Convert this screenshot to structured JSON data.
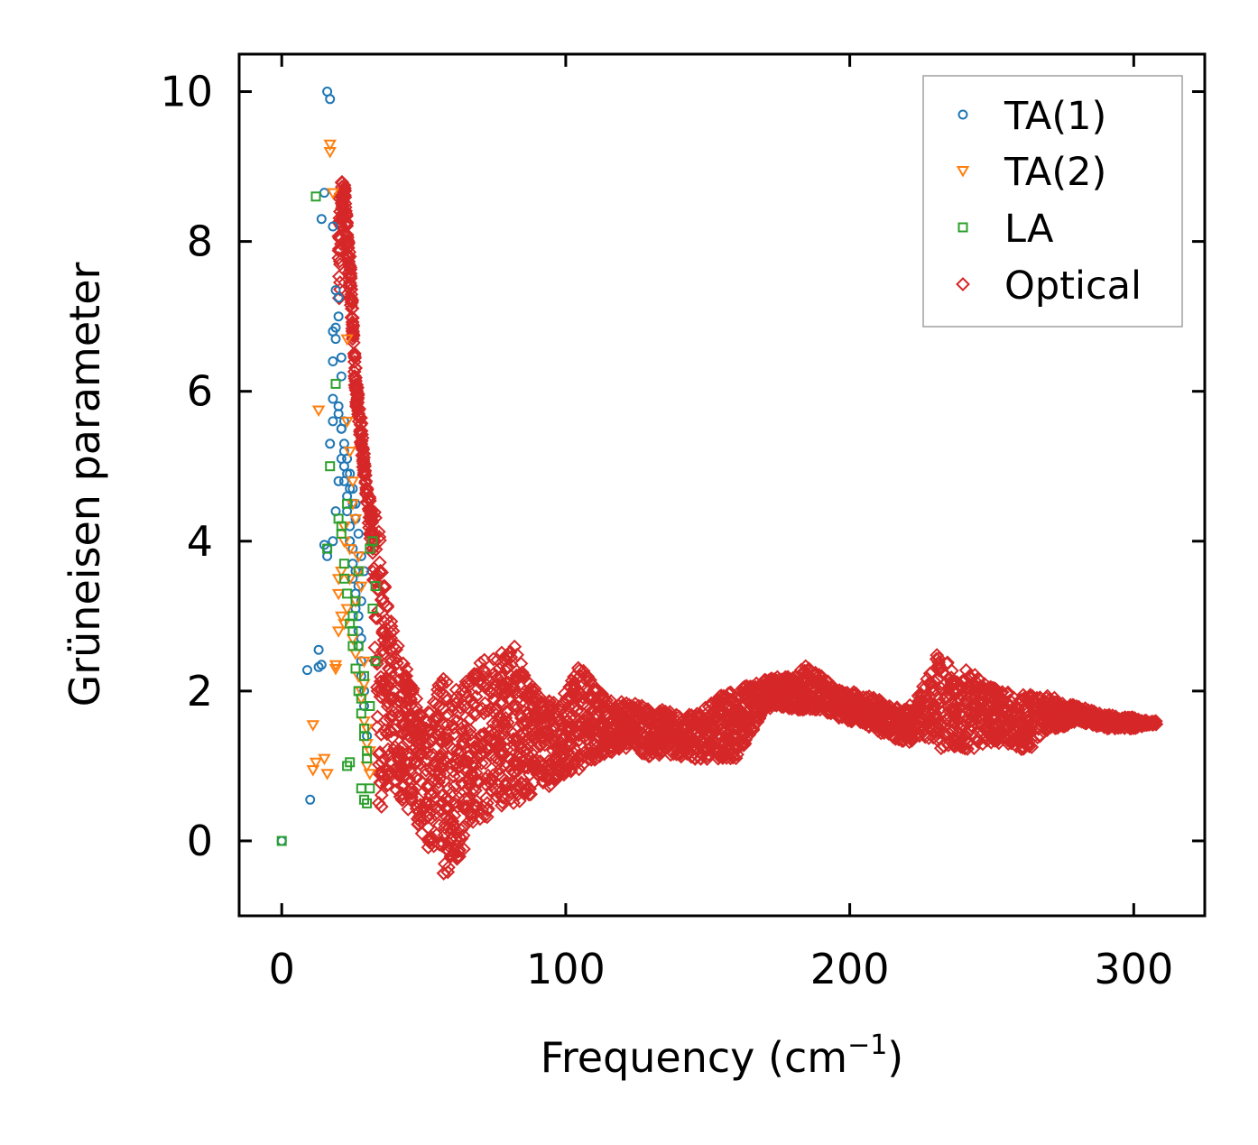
{
  "chart_data": {
    "type": "scatter",
    "title": "",
    "xlabel": "Frequency (cm",
    "xlabel_superscript": "−1",
    "xlabel_suffix": ")",
    "ylabel": "Grüneisen parameter",
    "xlim": [
      -15,
      325
    ],
    "ylim": [
      -1.0,
      10.5
    ],
    "xticks": [
      0,
      100,
      200,
      300
    ],
    "yticks": [
      0,
      2,
      4,
      6,
      8,
      10
    ],
    "xtick_labels": [
      "0",
      "100",
      "200",
      "300"
    ],
    "ytick_labels": [
      "0",
      "2",
      "4",
      "6",
      "8",
      "10"
    ],
    "grid": false,
    "legend_position": "top-right",
    "colors": {
      "TA(1)": "#1f77b4",
      "TA(2)": "#ff7f0e",
      "LA": "#2ca02c",
      "Optical": "#d62728"
    },
    "series": [
      {
        "name": "TA(1)",
        "marker": "circle",
        "x": [
          0,
          10,
          9,
          13,
          13,
          14,
          15,
          16,
          16,
          17,
          18,
          18,
          18,
          18,
          19,
          19,
          20,
          20,
          21,
          21,
          17,
          16,
          15,
          14,
          18,
          19,
          20,
          21,
          22,
          22,
          23,
          23,
          24,
          24,
          25,
          25,
          25,
          26,
          26,
          27,
          27,
          27,
          28,
          28,
          29,
          29,
          30,
          22,
          23,
          24,
          25,
          26,
          27,
          28,
          29,
          20,
          21,
          22,
          23,
          24,
          25,
          26,
          27,
          28,
          18,
          19,
          20,
          21,
          22,
          24,
          26,
          28
        ],
        "y": [
          0.0,
          0.55,
          2.28,
          2.32,
          2.55,
          2.35,
          3.95,
          3.8,
          3.9,
          5.3,
          5.6,
          5.9,
          6.4,
          6.8,
          6.7,
          7.35,
          7.0,
          7.25,
          6.2,
          6.45,
          9.9,
          10.0,
          8.65,
          8.3,
          8.2,
          6.85,
          5.8,
          5.5,
          5.0,
          4.8,
          4.6,
          4.4,
          4.2,
          4.0,
          3.9,
          3.7,
          3.5,
          3.3,
          3.1,
          3.0,
          2.8,
          2.6,
          2.4,
          2.2,
          2.0,
          1.8,
          1.4,
          5.2,
          4.9,
          4.7,
          4.5,
          4.3,
          4.1,
          3.8,
          3.6,
          5.7,
          5.5,
          5.3,
          5.1,
          4.9,
          4.7,
          4.5,
          3.4,
          3.2,
          4.0,
          4.4,
          4.8,
          5.1,
          5.6,
          4.0,
          3.6,
          2.7
        ]
      },
      {
        "name": "TA(2)",
        "marker": "triangle-down",
        "x": [
          11,
          11,
          12,
          13,
          15,
          16,
          17,
          17,
          18,
          19,
          20,
          20,
          21,
          22,
          23,
          24,
          25,
          26,
          27,
          28,
          29,
          30,
          22,
          23,
          24,
          25,
          26,
          27,
          28,
          29,
          30,
          31,
          19,
          21,
          23,
          25,
          27,
          29,
          31,
          20,
          22,
          24,
          26,
          28,
          30
        ],
        "y": [
          1.55,
          0.95,
          1.05,
          5.75,
          1.1,
          0.9,
          9.3,
          9.2,
          8.65,
          2.3,
          3.3,
          2.8,
          3.6,
          4.0,
          6.7,
          5.2,
          4.5,
          4.3,
          3.8,
          3.4,
          2.1,
          1.0,
          2.9,
          3.1,
          3.5,
          2.7,
          2.5,
          2.2,
          1.9,
          1.6,
          1.3,
          0.9,
          2.35,
          3.0,
          5.6,
          4.8,
          3.6,
          2.4,
          1.2,
          3.5,
          4.2,
          3.9,
          3.2,
          2.0,
          1.5
        ]
      },
      {
        "name": "LA",
        "marker": "square",
        "x": [
          0,
          12,
          16,
          17,
          19,
          20,
          21,
          22,
          23,
          24,
          25,
          26,
          27,
          28,
          29,
          30,
          31,
          32,
          21,
          22,
          23,
          24,
          25,
          26,
          27,
          28,
          29,
          30,
          31,
          32,
          33,
          23,
          25,
          27,
          29,
          31,
          33,
          28,
          29,
          30
        ],
        "y": [
          0.0,
          8.6,
          3.9,
          5.0,
          6.1,
          4.3,
          4.1,
          3.5,
          1.0,
          1.05,
          2.8,
          3.2,
          3.6,
          1.9,
          1.5,
          1.2,
          3.9,
          4.0,
          4.2,
          3.7,
          3.3,
          2.9,
          2.6,
          2.3,
          2.0,
          1.7,
          1.4,
          1.1,
          0.7,
          3.1,
          2.4,
          4.5,
          3.0,
          2.6,
          2.2,
          1.8,
          3.4,
          0.7,
          0.55,
          0.5
        ]
      },
      {
        "name": "Optical",
        "marker": "diamond",
        "x_min": 20,
        "x_max": 308,
        "envelope_x": [
          20,
          22,
          24,
          26,
          28,
          30,
          32,
          34,
          36,
          38,
          40,
          43,
          46,
          50,
          54,
          58,
          62,
          66,
          70,
          74,
          78,
          82,
          86,
          90,
          95,
          100,
          105,
          110,
          115,
          120,
          125,
          130,
          135,
          140,
          145,
          150,
          155,
          160,
          165,
          170,
          175,
          180,
          185,
          190,
          195,
          200,
          205,
          210,
          215,
          220,
          225,
          230,
          235,
          240,
          245,
          250,
          255,
          260,
          265,
          270,
          275,
          280,
          285,
          290,
          295,
          300,
          305,
          308
        ],
        "envelope_low": [
          6.8,
          8.7,
          7.4,
          5.9,
          5.2,
          4.4,
          3.8,
          0.4,
          0.5,
          0.6,
          0.7,
          0.5,
          0.3,
          0.0,
          -0.3,
          -0.5,
          -0.3,
          0.0,
          0.2,
          0.4,
          0.45,
          0.5,
          0.55,
          0.6,
          0.75,
          0.9,
          0.95,
          1.05,
          1.15,
          1.25,
          1.2,
          1.1,
          1.15,
          1.1,
          1.1,
          1.05,
          1.1,
          1.1,
          1.4,
          1.75,
          1.8,
          1.75,
          1.75,
          1.75,
          1.65,
          1.6,
          1.55,
          1.45,
          1.35,
          1.3,
          1.4,
          1.2,
          1.25,
          1.2,
          1.2,
          1.3,
          1.3,
          1.2,
          1.25,
          1.5,
          1.5,
          1.6,
          1.55,
          1.5,
          1.5,
          1.5,
          1.55,
          1.55
        ],
        "envelope_high": [
          8.9,
          8.8,
          7.8,
          6.3,
          5.6,
          4.7,
          4.5,
          4.3,
          3.6,
          3.1,
          2.7,
          2.5,
          2.1,
          1.6,
          2.1,
          2.2,
          2.0,
          2.2,
          2.4,
          2.5,
          2.55,
          2.6,
          2.2,
          2.0,
          1.9,
          2.0,
          2.35,
          2.1,
          1.9,
          1.85,
          1.85,
          1.75,
          1.75,
          1.7,
          1.7,
          1.8,
          1.95,
          2.0,
          2.1,
          2.15,
          2.2,
          2.2,
          2.35,
          2.2,
          2.05,
          2.0,
          1.95,
          1.9,
          1.8,
          1.75,
          2.0,
          2.5,
          2.4,
          2.3,
          2.2,
          2.05,
          2.0,
          1.95,
          1.95,
          1.95,
          1.85,
          1.8,
          1.75,
          1.7,
          1.65,
          1.65,
          1.6,
          1.6
        ]
      }
    ]
  }
}
